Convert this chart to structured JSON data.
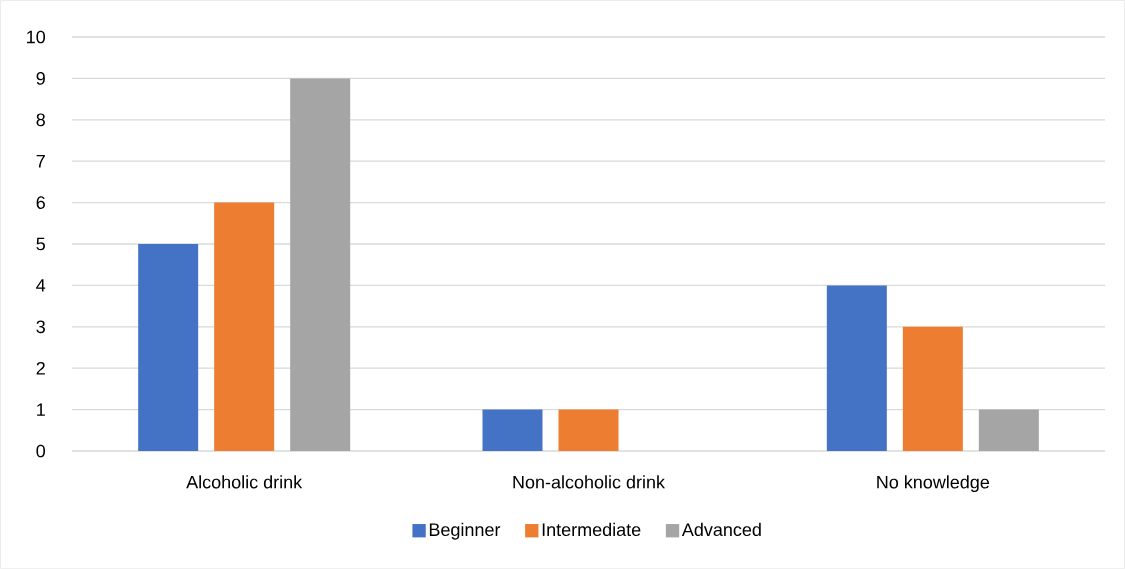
{
  "chart_data": {
    "type": "bar",
    "categories": [
      "Alcoholic drink",
      "Non-alcoholic drink",
      "No knowledge"
    ],
    "series": [
      {
        "name": "Beginner",
        "color": "#4472c4",
        "values": [
          5,
          1,
          4
        ]
      },
      {
        "name": "Intermediate",
        "color": "#ed7d31",
        "values": [
          6,
          1,
          3
        ]
      },
      {
        "name": "Advanced",
        "color": "#a5a5a5",
        "values": [
          9,
          0,
          1
        ]
      }
    ],
    "ylim": [
      0,
      10
    ],
    "yticks": [
      0,
      1,
      2,
      3,
      4,
      5,
      6,
      7,
      8,
      9,
      10
    ],
    "grid": "y",
    "legend": "bottom"
  }
}
